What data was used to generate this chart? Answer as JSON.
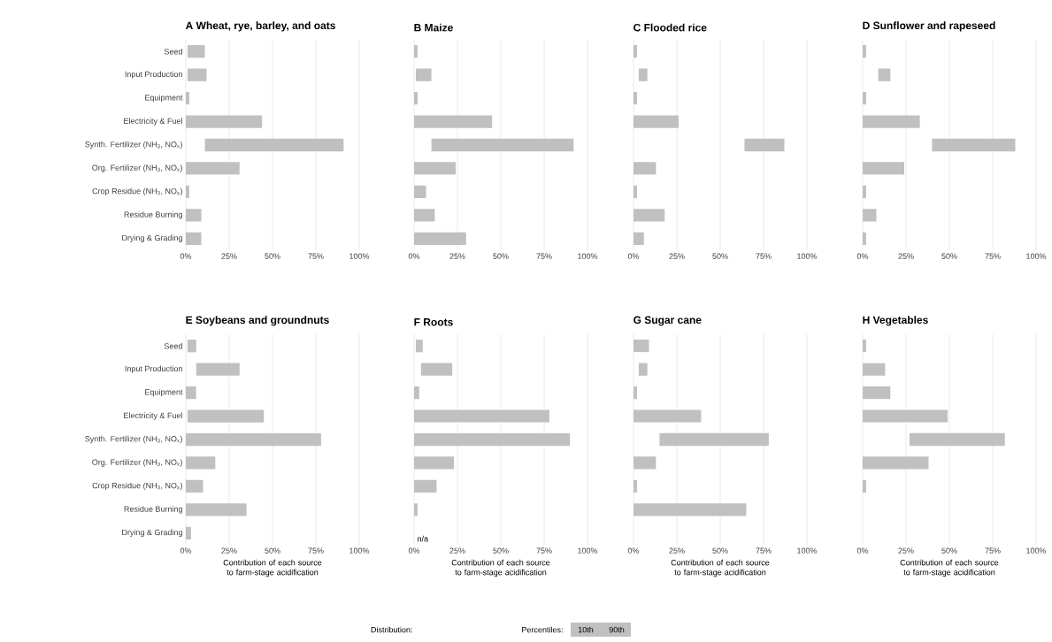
{
  "chart_data": [
    {
      "type": "bar",
      "orientation": "horizontal",
      "title": "A  Wheat, rye, barley, and oats",
      "categories": [
        "Seed",
        "Input Production",
        "Equipment",
        "Electricity & Fuel",
        "Synth. Fertilizer (NH$_{3}$, NO$_{x}$)",
        "Org. Fertilizer (NH$_{3}$, NO$_{x}$)",
        "Crop Residue (NH$_{3}$, NO$_{x}$)",
        "Residue Burning",
        "Drying & Grading"
      ],
      "base": [
        1,
        1,
        0,
        0,
        11,
        0,
        0,
        0,
        0
      ],
      "values": [
        10,
        11,
        2,
        44,
        80,
        31,
        2,
        9,
        9
      ],
      "color": "#c0c0c0",
      "xlim": [
        0,
        100
      ],
      "xticks": [
        {
          "value": 0,
          "label": "0%"
        },
        {
          "value": 25,
          "label": "25%"
        },
        {
          "value": 50,
          "label": "50%"
        },
        {
          "value": 75,
          "label": "75%"
        },
        {
          "value": 100,
          "label": "100%"
        }
      ],
      "grid": "x"
    },
    {
      "type": "bar",
      "orientation": "horizontal",
      "title": "B  Maize",
      "categories": [
        null,
        null,
        null,
        null,
        null,
        null,
        null,
        null,
        null
      ],
      "base": [
        0,
        1,
        0,
        0,
        10,
        0,
        0,
        0,
        0
      ],
      "values": [
        2,
        9,
        2,
        45,
        82,
        24,
        7,
        12,
        30
      ],
      "color": "#c0c0c0",
      "xlim": [
        0,
        100
      ],
      "xticks": [
        {
          "value": 0,
          "label": "0%"
        },
        {
          "value": 25,
          "label": "25%"
        },
        {
          "value": 50,
          "label": "50%"
        },
        {
          "value": 75,
          "label": "75%"
        },
        {
          "value": 100,
          "label": "100%"
        }
      ],
      "grid": "x",
      "tick_labels": "x"
    },
    {
      "type": "bar",
      "orientation": "horizontal",
      "title": "C  Flooded rice",
      "categories": [
        null,
        null,
        null,
        null,
        null,
        null,
        null,
        null,
        null
      ],
      "base": [
        0,
        3,
        0,
        0,
        64,
        0,
        0,
        0,
        0
      ],
      "values": [
        2,
        5,
        2,
        26,
        23,
        13,
        2,
        18,
        6
      ],
      "color": "#c0c0c0",
      "xlim": [
        0,
        100
      ],
      "xticks": [
        {
          "value": 0,
          "label": "0%"
        },
        {
          "value": 25,
          "label": "25%"
        },
        {
          "value": 50,
          "label": "50%"
        },
        {
          "value": 75,
          "label": "75%"
        },
        {
          "value": 100,
          "label": "100%"
        }
      ],
      "grid": "x",
      "tick_labels": "x"
    },
    {
      "type": "bar",
      "orientation": "horizontal",
      "title": "D  Sunflower and rapeseed",
      "categories": [
        null,
        null,
        null,
        null,
        null,
        null,
        null,
        null,
        null
      ],
      "base": [
        0,
        9,
        0,
        0,
        40,
        0,
        0,
        0,
        0
      ],
      "values": [
        2,
        7,
        2,
        33,
        48,
        24,
        2,
        8,
        2
      ],
      "color": "#c0c0c0",
      "xlim": [
        0,
        100
      ],
      "xticks": [
        {
          "value": 0,
          "label": "0%"
        },
        {
          "value": 25,
          "label": "25%"
        },
        {
          "value": 50,
          "label": "50%"
        },
        {
          "value": 75,
          "label": "75%"
        },
        {
          "value": 100,
          "label": "100%"
        }
      ],
      "grid": "x",
      "tick_labels": "x"
    },
    {
      "type": "bar",
      "orientation": "horizontal",
      "title": "E  Soybeans and groundnuts",
      "xlabel": "Contribution of each source to farm-stage acidification",
      "categories": [
        "Seed",
        "Input Production",
        "Equipment",
        "Electricity & Fuel",
        "Synth. Fertilizer (NH$_{3}$, NO$_{x}$)",
        "Org. Fertilizer (NH$_{3}$, NO$_{x}$)",
        "Crop Residue (NH$_{3}$, NO$_{x}$)",
        "Residue Burning",
        "Drying & Grading"
      ],
      "base": [
        1,
        6,
        0,
        1,
        0,
        0,
        0,
        0,
        0
      ],
      "values": [
        5,
        25,
        6,
        44,
        78,
        17,
        10,
        35,
        3
      ],
      "color": "#c0c0c0",
      "xlim": [
        0,
        100
      ],
      "xticks": [
        {
          "value": 0,
          "label": "0%"
        },
        {
          "value": 25,
          "label": "25%"
        },
        {
          "value": 50,
          "label": "50%"
        },
        {
          "value": 75,
          "label": "75%"
        },
        {
          "value": 100,
          "label": "100%"
        }
      ],
      "grid": "x"
    },
    {
      "type": "bar",
      "orientation": "horizontal",
      "title": "F  Roots",
      "xlabel": "Contribution of each source to farm-stage acidification",
      "categories": [
        null,
        null,
        null,
        null,
        null,
        null,
        null,
        null,
        null
      ],
      "base": [
        1,
        4,
        0,
        0,
        0,
        0,
        0,
        0,
        null
      ],
      "values": [
        4,
        18,
        3,
        78,
        90,
        23,
        13,
        2,
        null
      ],
      "color": "#c0c0c0",
      "xlim": [
        0,
        100
      ],
      "xticks": [
        {
          "value": 0,
          "label": "0%"
        },
        {
          "value": 25,
          "label": "25%"
        },
        {
          "value": 50,
          "label": "50%"
        },
        {
          "value": 75,
          "label": "75%"
        },
        {
          "value": 100,
          "label": "100%"
        }
      ],
      "grid": "x",
      "tick_labels": "x",
      "annotations": [
        "n/a"
      ]
    },
    {
      "type": "bar",
      "orientation": "horizontal",
      "title": "G  Sugar cane",
      "xlabel": "Contribution of each source to farm-stage acidification",
      "categories": [
        null,
        null,
        null,
        null,
        null,
        null,
        null,
        null,
        null
      ],
      "base": [
        0,
        3,
        0,
        0,
        15,
        0,
        0,
        0,
        null
      ],
      "values": [
        9,
        5,
        2,
        39,
        63,
        13,
        2,
        65,
        null
      ],
      "color": "#c0c0c0",
      "xlim": [
        0,
        100
      ],
      "xticks": [
        {
          "value": 0,
          "label": "0%"
        },
        {
          "value": 25,
          "label": "25%"
        },
        {
          "value": 50,
          "label": "50%"
        },
        {
          "value": 75,
          "label": "75%"
        },
        {
          "value": 100,
          "label": "100%"
        }
      ],
      "grid": "x",
      "tick_labels": "x"
    },
    {
      "type": "bar",
      "orientation": "horizontal",
      "title": "H  Vegetables",
      "xlabel": "Contribution of each source to farm-stage acidification",
      "categories": [
        null,
        null,
        null,
        null,
        null,
        null,
        null,
        null,
        null
      ],
      "base": [
        0,
        0,
        0,
        0,
        27,
        0,
        0,
        null,
        null
      ],
      "values": [
        2,
        13,
        16,
        49,
        55,
        38,
        2,
        null,
        null
      ],
      "color": "#c0c0c0",
      "xlim": [
        0,
        100
      ],
      "xticks": [
        {
          "value": 0,
          "label": "0%"
        },
        {
          "value": 25,
          "label": "25%"
        },
        {
          "value": 50,
          "label": "50%"
        },
        {
          "value": 75,
          "label": "75%"
        },
        {
          "value": 100,
          "label": "100%"
        }
      ],
      "grid": "x",
      "tick_labels": "x"
    },
    {
      "type": "other",
      "annotations": [
        "Distribution:",
        "Percentiles:",
        "10th",
        "90th"
      ]
    }
  ]
}
